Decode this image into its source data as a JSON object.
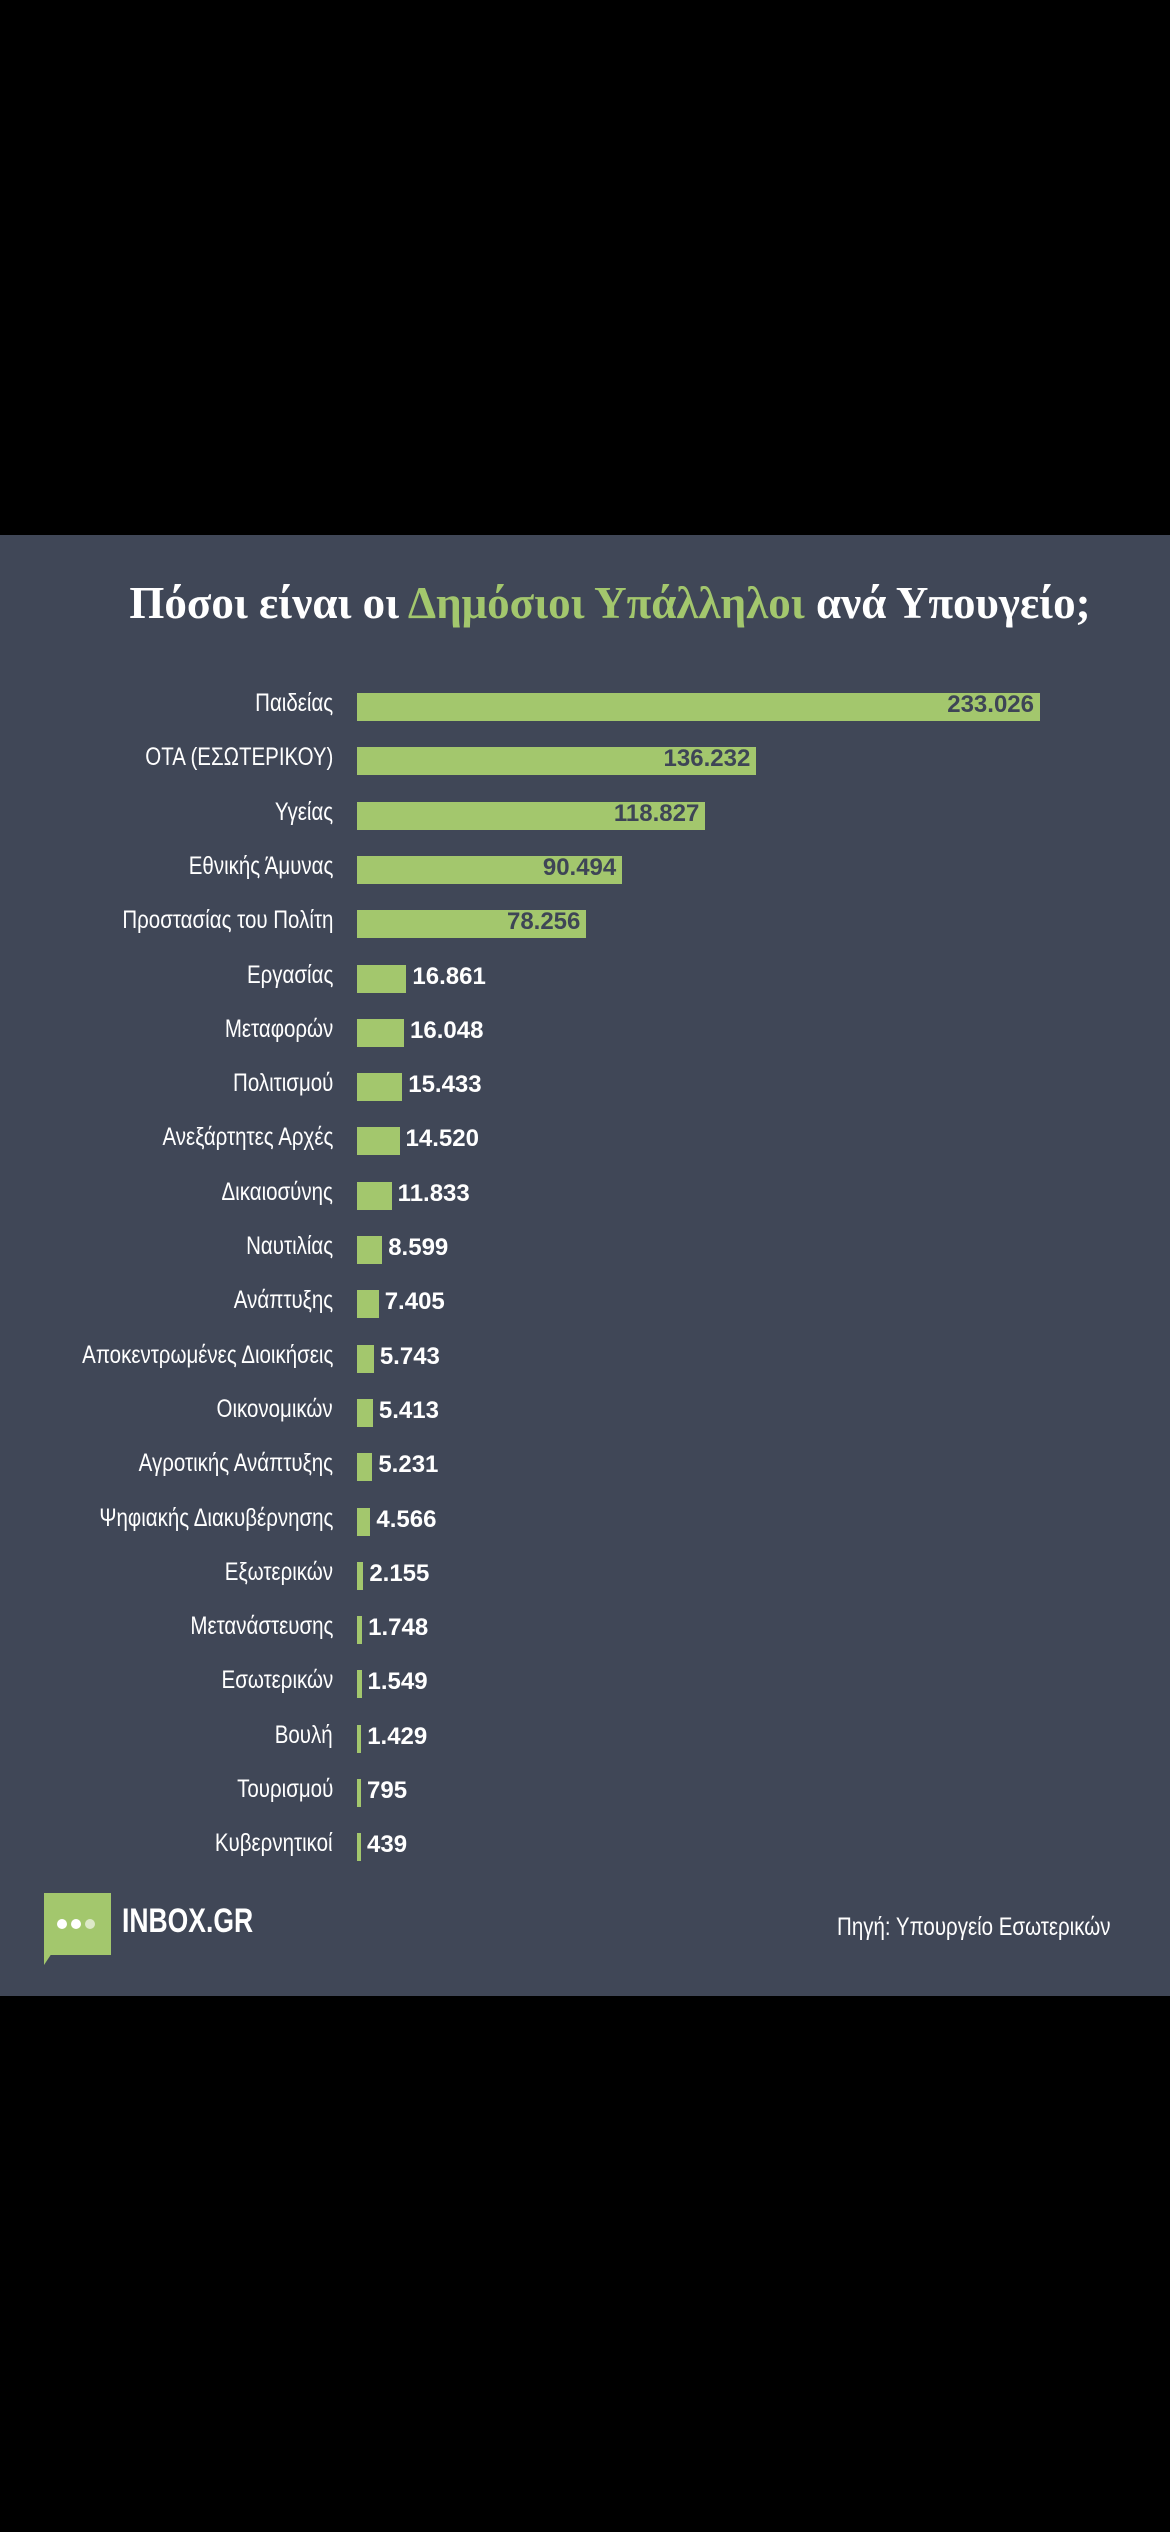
{
  "chart_data": {
    "type": "bar",
    "orientation": "horizontal",
    "title_parts": [
      "Πόσοι είναι οι ",
      "Δημόσιοι Υπάλληλοι",
      " ανά Υπουγείο;"
    ],
    "categories": [
      "Παιδείας",
      "ΟΤΑ (ΕΣΩΤΕΡΙΚΟΥ)",
      "Υγείας",
      "Εθνικής Άμυνας",
      "Προστασίας του Πολίτη",
      "Εργασίας",
      "Μεταφορών",
      "Πολιτισμού",
      "Ανεξάρτητες Αρχές",
      "Δικαιοσύνης",
      "Ναυτιλίας",
      "Ανάπτυξης",
      "Αποκεντρωμένες Διοικήσεις",
      "Οικονομικών",
      "Αγροτικής Ανάπτυξης",
      "Ψηφιακής Διακυβέρνησης",
      "Εξωτερικών",
      "Μετανάστευσης",
      "Εσωτερικών",
      "Βουλή",
      "Τουρισμού",
      "Κυβερνητικοί"
    ],
    "values": [
      233026,
      136232,
      118827,
      90494,
      78256,
      16861,
      16048,
      15433,
      14520,
      11833,
      8599,
      7405,
      5743,
      5413,
      5231,
      4566,
      2155,
      1748,
      1549,
      1429,
      795,
      439
    ],
    "value_labels": [
      "233.026",
      "136.232",
      "118.827",
      "90.494",
      "78.256",
      "16.861",
      "16.048",
      "15.433",
      "14.520",
      "11.833",
      "8.599",
      "7.405",
      "5.743",
      "5.413",
      "5.231",
      "4.566",
      "2.155",
      "1.748",
      "1.549",
      "1.429",
      "795",
      "439"
    ],
    "xlim": [
      0,
      233026
    ],
    "grid": false,
    "colors": {
      "bar": "#a3c76d",
      "background": "#404757",
      "highlight": "#a3c76d"
    }
  },
  "footer": {
    "brand": "INBOX.GR",
    "source": "Πηγή: Υπουργείο Εσωτερικών"
  }
}
